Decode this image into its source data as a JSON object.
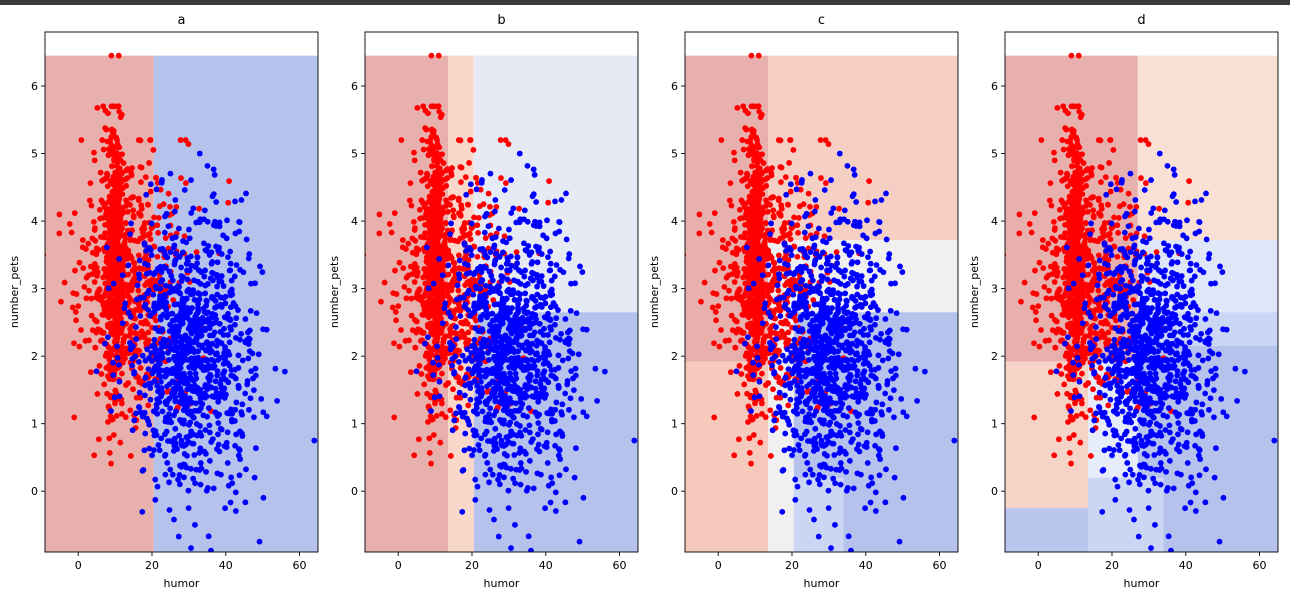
{
  "chart_data": [
    {
      "type": "scatter",
      "title": "a",
      "xlabel": "humor",
      "ylabel": "number_pets",
      "xlim": [
        -9,
        65
      ],
      "ylim": [
        -0.9,
        6.8
      ],
      "xticks": [
        "0",
        "20",
        "40",
        "60"
      ],
      "yticks": [
        "0",
        "1",
        "2",
        "3",
        "4",
        "5",
        "6"
      ],
      "series_colors": {
        "class_0": "#ff0000",
        "class_1": "#0000ff"
      },
      "regions": [
        {
          "x0": -9,
          "x1": 20.5,
          "y0": -0.9,
          "y1": 6.45,
          "color": "#e8b0ad"
        },
        {
          "x0": 20.5,
          "x1": 65,
          "y0": -0.9,
          "y1": 6.45,
          "color": "#b4c2ec"
        }
      ]
    },
    {
      "type": "scatter",
      "title": "b",
      "xlabel": "humor",
      "ylabel": "number_pets",
      "xlim": [
        -9,
        65
      ],
      "ylim": [
        -0.9,
        6.8
      ],
      "xticks": [
        "0",
        "20",
        "40",
        "60"
      ],
      "yticks": [
        "0",
        "1",
        "2",
        "3",
        "4",
        "5",
        "6"
      ],
      "series_colors": {
        "class_0": "#ff0000",
        "class_1": "#0000ff"
      },
      "regions": [
        {
          "x0": -9,
          "x1": 13.5,
          "y0": -0.9,
          "y1": 6.45,
          "color": "#e8b0ad"
        },
        {
          "x0": 13.5,
          "x1": 20.5,
          "y0": -0.9,
          "y1": 6.45,
          "color": "#f9d8ca"
        },
        {
          "x0": 20.5,
          "x1": 65,
          "y0": 2.65,
          "y1": 6.45,
          "color": "#e6eaf5"
        },
        {
          "x0": 20.5,
          "x1": 65,
          "y0": -0.9,
          "y1": 2.65,
          "color": "#b4c2ec"
        }
      ]
    },
    {
      "type": "scatter",
      "title": "c",
      "xlabel": "humor",
      "ylabel": "number_pets",
      "xlim": [
        -9,
        65
      ],
      "ylim": [
        -0.9,
        6.8
      ],
      "xticks": [
        "0",
        "20",
        "40",
        "60"
      ],
      "yticks": [
        "0",
        "1",
        "2",
        "3",
        "4",
        "5",
        "6"
      ],
      "series_colors": {
        "class_0": "#ff0000",
        "class_1": "#0000ff"
      },
      "regions": [
        {
          "x0": -9,
          "x1": 13.5,
          "y0": 1.92,
          "y1": 6.45,
          "color": "#e8b0ad"
        },
        {
          "x0": -9,
          "x1": 13.5,
          "y0": -0.9,
          "y1": 1.92,
          "color": "#f5c9bc"
        },
        {
          "x0": 13.5,
          "x1": 65,
          "y0": 3.72,
          "y1": 6.45,
          "color": "#f5cfc3"
        },
        {
          "x0": 13.5,
          "x1": 65,
          "y0": 2.65,
          "y1": 3.72,
          "color": "#f0f0f0"
        },
        {
          "x0": 13.5,
          "x1": 20.5,
          "y0": -0.9,
          "y1": 2.65,
          "color": "#f0f0f0"
        },
        {
          "x0": 20.5,
          "x1": 65,
          "y0": -0.9,
          "y1": 2.65,
          "color": "#b4c2ec"
        },
        {
          "x0": 20.5,
          "x1": 34,
          "y0": -0.9,
          "y1": 0.2,
          "color": "#cbd6f4"
        }
      ]
    },
    {
      "type": "scatter",
      "title": "d",
      "xlabel": "humor",
      "ylabel": "number_pets",
      "xlim": [
        -9,
        65
      ],
      "ylim": [
        -0.9,
        6.8
      ],
      "xticks": [
        "0",
        "20",
        "40",
        "60"
      ],
      "yticks": [
        "0",
        "1",
        "2",
        "3",
        "4",
        "5",
        "6"
      ],
      "series_colors": {
        "class_0": "#ff0000",
        "class_1": "#0000ff"
      },
      "regions": [
        {
          "x0": -9,
          "x1": 27,
          "y0": 1.92,
          "y1": 6.45,
          "color": "#e8b0ad"
        },
        {
          "x0": -9,
          "x1": 13.5,
          "y0": -0.25,
          "y1": 1.92,
          "color": "#f5d3c6"
        },
        {
          "x0": -9,
          "x1": 13.5,
          "y0": -0.9,
          "y1": -0.25,
          "color": "#b9c6ee"
        },
        {
          "x0": 13.5,
          "x1": 27,
          "y0": -0.9,
          "y1": 1.92,
          "color": "#e6ecfa"
        },
        {
          "x0": 27,
          "x1": 65,
          "y0": 3.72,
          "y1": 6.45,
          "color": "#f9e0d5"
        },
        {
          "x0": 27,
          "x1": 65,
          "y0": 2.65,
          "y1": 3.72,
          "color": "#dfe6f8"
        },
        {
          "x0": 27,
          "x1": 65,
          "y0": 2.15,
          "y1": 2.65,
          "color": "#cad6f5"
        },
        {
          "x0": 27,
          "x1": 65,
          "y0": -0.9,
          "y1": 2.15,
          "color": "#b4c2ec"
        },
        {
          "x0": 13.5,
          "x1": 34,
          "y0": -0.9,
          "y1": 0.2,
          "color": "#cbd6f4"
        }
      ]
    }
  ]
}
